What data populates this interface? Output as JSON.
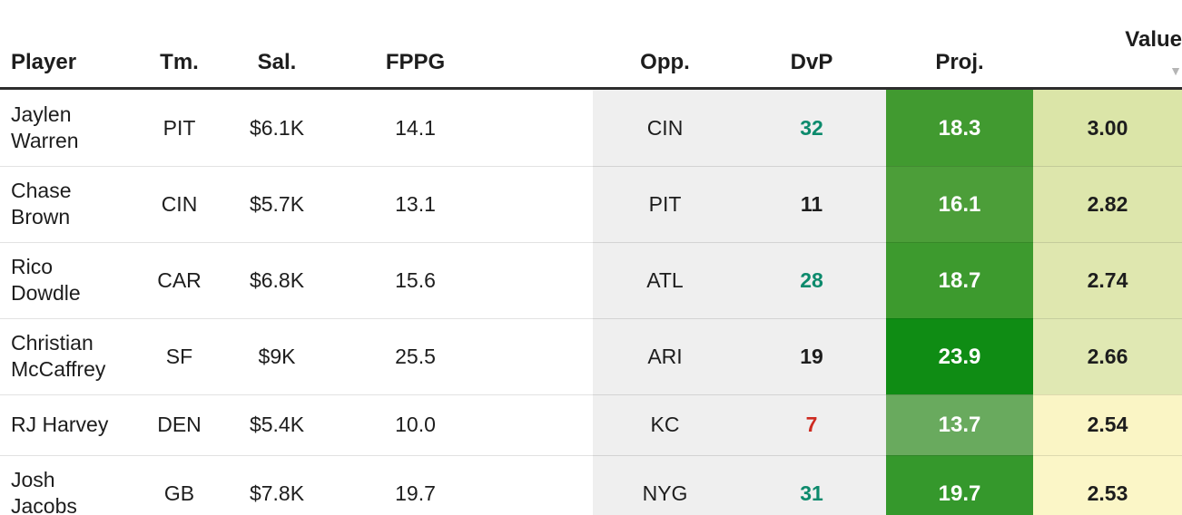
{
  "header": {
    "columns": [
      {
        "label": "Player"
      },
      {
        "label": "Tm."
      },
      {
        "label": "Sal."
      },
      {
        "label": "FPPG"
      },
      {
        "label": "Opp."
      },
      {
        "label": "DvP"
      },
      {
        "label": "Proj."
      },
      {
        "label": "Value",
        "sort": "desc"
      }
    ],
    "sort_arrow": "▼"
  },
  "rows": [
    {
      "player": "Jaylen Warren",
      "tm": "PIT",
      "sal": "$6.1K",
      "fppg": "14.1",
      "opp": "CIN",
      "dvp": "32",
      "dvp_color": "#0c8a6c",
      "proj": "18.3",
      "proj_bg": "#419a30",
      "proj_color": "#ffffff",
      "value": "3.00",
      "value_bg": "#dbe5a8",
      "value_color": "#1d1d1d"
    },
    {
      "player": "Chase Brown",
      "tm": "CIN",
      "sal": "$5.7K",
      "fppg": "13.1",
      "opp": "PIT",
      "dvp": "11",
      "dvp_color": "#1d1d1d",
      "proj": "16.1",
      "proj_bg": "#4c9e39",
      "proj_color": "#ffffff",
      "value": "2.82",
      "value_bg": "#dde6ac",
      "value_color": "#1d1d1d"
    },
    {
      "player": "Rico Dowdle",
      "tm": "CAR",
      "sal": "$6.8K",
      "fppg": "15.6",
      "opp": "ATL",
      "dvp": "28",
      "dvp_color": "#0c8a6c",
      "proj": "18.7",
      "proj_bg": "#3d9a2e",
      "proj_color": "#ffffff",
      "value": "2.74",
      "value_bg": "#dfe7af",
      "value_color": "#1d1d1d"
    },
    {
      "player": "Christian McCaffrey",
      "tm": "SF",
      "sal": "$9K",
      "fppg": "25.5",
      "opp": "ARI",
      "dvp": "19",
      "dvp_color": "#1d1d1d",
      "proj": "23.9",
      "proj_bg": "#0f8c14",
      "proj_color": "#ffffff",
      "value": "2.66",
      "value_bg": "#e0e8b3",
      "value_color": "#1d1d1d"
    },
    {
      "player": "RJ Harvey",
      "tm": "DEN",
      "sal": "$5.4K",
      "fppg": "10.0",
      "opp": "KC",
      "dvp": "7",
      "dvp_color": "#ce2b21",
      "proj": "13.7",
      "proj_bg": "#69aa5e",
      "proj_color": "#ffffff",
      "value": "2.54",
      "value_bg": "#faf5c5",
      "value_color": "#1d1d1d"
    },
    {
      "player": "Josh Jacobs",
      "tm": "GB",
      "sal": "$7.8K",
      "fppg": "19.7",
      "opp": "NYG",
      "dvp": "31",
      "dvp_color": "#0c8a6c",
      "proj": "19.7",
      "proj_bg": "#35982c",
      "proj_color": "#ffffff",
      "value": "2.53",
      "value_bg": "#fbf6c7",
      "value_color": "#1d1d1d"
    }
  ],
  "colors": {
    "matchup_column_bg": "#efefef",
    "header_border": "#2d2d2d",
    "text": "#1d1d1d",
    "sort_arrow": "#b5b5b5",
    "dvp_good": "#0c8a6c",
    "dvp_bad": "#ce2b21"
  }
}
